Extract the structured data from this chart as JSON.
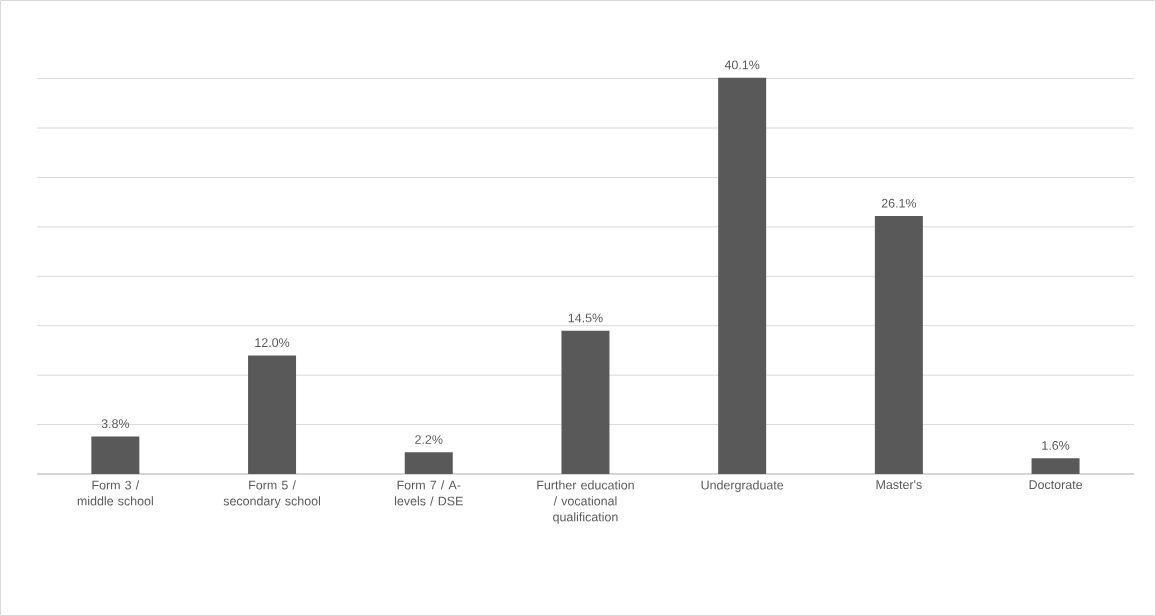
{
  "chart_data": {
    "type": "bar",
    "categories": [
      "Form 3 / middle school",
      "Form 5 / secondary school",
      "Form 7 / A-levels / DSE",
      "Further education / vocational qualification",
      "Undergraduate",
      "Master's",
      "Doctorate"
    ],
    "values": [
      3.8,
      12.0,
      2.2,
      14.5,
      40.1,
      26.1,
      1.6
    ],
    "value_labels": [
      "3.8%",
      "12.0%",
      "2.2%",
      "14.5%",
      "40.1%",
      "26.1%",
      "1.6%"
    ],
    "color": "#595959",
    "grid": "y",
    "tick_labels": "x"
  }
}
